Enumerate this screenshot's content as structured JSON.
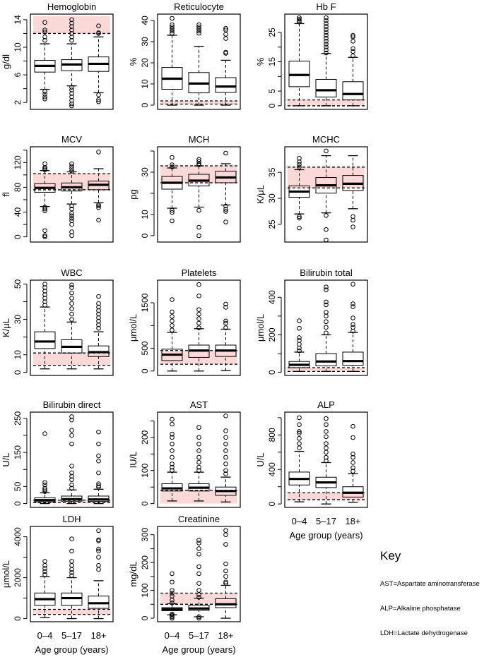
{
  "colors": {
    "band": "#fcd9d9",
    "box": "#000000"
  },
  "key": {
    "title": "Key",
    "items": [
      "AST=Aspartate aminotransferase",
      "ALP=Alkaline phosphatase",
      "LDH=Lactate dehydrogenase"
    ]
  },
  "chart_data": {
    "type": "boxplot",
    "categories": [
      "0–4",
      "5–17",
      "18+"
    ],
    "xlabel": "Age group (years)",
    "panels": [
      {
        "title": "Hemoglobin",
        "ylabel": "g/dl",
        "ylim": [
          1.3,
          14.5
        ],
        "ticks": [
          2,
          4,
          6,
          8,
          10,
          12,
          14
        ],
        "tick_labels": [
          2,
          6,
          10,
          14
        ],
        "band": [
          12,
          14.5
        ],
        "dashed": [
          12
        ],
        "boxes": [
          [
            3.9,
            6.4,
            7.3,
            8.1,
            10.5
          ],
          [
            4.4,
            6.6,
            7.5,
            8.2,
            10.5
          ],
          [
            3.4,
            6.5,
            7.6,
            8.6,
            11.5
          ]
        ],
        "outliers": [
          [
            2.5,
            2.8,
            3.2,
            3.6,
            11,
            11.5,
            12.2,
            12.5,
            13.6
          ],
          [
            1.5,
            1.8,
            2.3,
            2.8,
            3.3,
            3.8,
            4.2,
            11,
            11.5,
            12,
            12.5,
            13,
            13.5,
            14
          ],
          [
            2.1,
            2.4,
            3.1,
            12,
            12.1,
            13.1
          ]
        ]
      },
      {
        "title": "Reticulocyte",
        "ylabel": "%",
        "ylim": [
          -1,
          42
        ],
        "ticks": [
          0,
          10,
          20,
          30,
          40
        ],
        "tick_labels": [
          0,
          10,
          20,
          30,
          40
        ],
        "band": [
          0.5,
          2
        ],
        "dashed": [
          0.5,
          2
        ],
        "boxes": [
          [
            0,
            7.5,
            12.5,
            17.8,
            33
          ],
          [
            0,
            5.8,
            10.2,
            15.4,
            27.8
          ],
          [
            0,
            6,
            8.8,
            13,
            21.2
          ]
        ],
        "outliers": [
          [
            34,
            35,
            36,
            37,
            38,
            41
          ],
          [
            34,
            35,
            36,
            37,
            38
          ],
          [
            24.5,
            25,
            31.5,
            33.5,
            35.5,
            36.3
          ]
        ]
      },
      {
        "title": "Hb F",
        "ylabel": "%",
        "ylim": [
          -0.5,
          30.5
        ],
        "ticks": [
          0,
          5,
          10,
          15,
          20,
          25
        ],
        "tick_labels": [
          0,
          5,
          15,
          25
        ],
        "band": [
          0,
          2
        ],
        "dashed": [
          0,
          2
        ],
        "boxes": [
          [
            0,
            6.5,
            10.5,
            15.2,
            28
          ],
          [
            0,
            3,
            5.3,
            9,
            17.8
          ],
          [
            0,
            2,
            4,
            8.2,
            16.5
          ]
        ],
        "outliers": [
          [
            28.5,
            29,
            29.5,
            30
          ],
          [
            18,
            19,
            20,
            21,
            22,
            23,
            24,
            25,
            26,
            27,
            28,
            29,
            30
          ],
          [
            17,
            18.5,
            19.5,
            22,
            23.5,
            24
          ]
        ]
      },
      {
        "title": "MCV",
        "ylabel": "fl",
        "ylim": [
          -5,
          142
        ],
        "ticks": [
          0,
          20,
          40,
          60,
          80,
          100,
          120,
          140
        ],
        "tick_labels": [
          0,
          40,
          80,
          120
        ],
        "band": [
          76,
          102
        ],
        "dashed": [
          76,
          102
        ],
        "boxes": [
          [
            49,
            72,
            79,
            86,
            107
          ],
          [
            53,
            74,
            80,
            87,
            105
          ],
          [
            55,
            76,
            84,
            90,
            110
          ]
        ],
        "outliers": [
          [
            0,
            2,
            10,
            42,
            45,
            48,
            108,
            110,
            112,
            118
          ],
          [
            2,
            8,
            20,
            26,
            30,
            34,
            38,
            45,
            50,
            106,
            110,
            114,
            118
          ],
          [
            27,
            47,
            50,
            52,
            137
          ]
        ]
      },
      {
        "title": "MCH",
        "ylabel": "pg",
        "ylim": [
          -2,
          41
        ],
        "ticks": [
          0,
          10,
          20,
          30,
          40
        ],
        "tick_labels": [
          0,
          10,
          30
        ],
        "band": [
          25,
          33
        ],
        "dashed": [
          25,
          33
        ],
        "boxes": [
          [
            13,
            22,
            25,
            28,
            32
          ],
          [
            13.5,
            23.5,
            26,
            29,
            33
          ],
          [
            14.5,
            25,
            27.5,
            30.5,
            34
          ]
        ],
        "outliers": [
          [
            7,
            11,
            12,
            32.5,
            33.5,
            37
          ],
          [
            0,
            4,
            12,
            33.5,
            34,
            35,
            36
          ],
          [
            6.5,
            11.5,
            12.5,
            14,
            39
          ]
        ]
      },
      {
        "title": "MCHC",
        "ylabel": "K/μL",
        "ylim": [
          22,
          39.5
        ],
        "ticks": [
          25,
          30,
          35
        ],
        "tick_labels": [
          25,
          30,
          35
        ],
        "band": [
          32,
          36
        ],
        "dashed": [
          32,
          36
        ],
        "boxes": [
          [
            27,
            30.2,
            31.3,
            32.4,
            35.5
          ],
          [
            27.2,
            31,
            32.5,
            34,
            38.2
          ],
          [
            28,
            31.5,
            32.8,
            34.4,
            38.2
          ]
        ],
        "outliers": [
          [
            24.3,
            26.2,
            26.5,
            36,
            36.5,
            37,
            37.7
          ],
          [
            22,
            24,
            26.7,
            39.1
          ],
          [
            24.5,
            25.8,
            26.5
          ]
        ]
      },
      {
        "title": "WBC",
        "ylabel": "K/μL",
        "ylim": [
          -0.5,
          51
        ],
        "ticks": [
          0,
          10,
          20,
          30,
          40,
          50
        ],
        "tick_labels": [
          0,
          10,
          30,
          50
        ],
        "band": [
          4,
          11
        ],
        "dashed": [
          4,
          11
        ],
        "boxes": [
          [
            2,
            13.5,
            17.5,
            23,
            37
          ],
          [
            2,
            11,
            14.5,
            18.5,
            28.5
          ],
          [
            2,
            9,
            11.5,
            15,
            23
          ]
        ],
        "outliers": [
          [
            38,
            40,
            42,
            44,
            46,
            48,
            50
          ],
          [
            30,
            33,
            36,
            39,
            42,
            45,
            48,
            49.5
          ],
          [
            25,
            27,
            29,
            31,
            33,
            35,
            37,
            39,
            43
          ]
        ]
      },
      {
        "title": "Platelets",
        "ylabel": "μmol/L",
        "ylim": [
          -50,
          1950
        ],
        "ticks": [
          0,
          500,
          1000,
          1500
        ],
        "tick_labels": [
          0,
          500,
          1500
        ],
        "band": [
          150,
          450
        ],
        "dashed": [
          150,
          450
        ],
        "boxes": [
          [
            0,
            230,
            360,
            480,
            850
          ],
          [
            0,
            300,
            450,
            570,
            930
          ],
          [
            10,
            320,
            450,
            570,
            920
          ]
        ],
        "outliers": [
          [
            900,
            1000,
            1100,
            1200,
            1300,
            1570
          ],
          [
            950,
            1050,
            1150,
            1250,
            1350,
            1650,
            1900
          ],
          [
            950,
            1050,
            1100,
            1400,
            1470
          ]
        ]
      },
      {
        "title": "Bilirubin total",
        "ylabel": "μmol/L",
        "ylim": [
          -5,
          480
        ],
        "ticks": [
          0,
          100,
          200,
          300,
          400
        ],
        "tick_labels": [
          0,
          200,
          400
        ],
        "band": [
          5,
          25
        ],
        "dashed": [
          5,
          25
        ],
        "boxes": [
          [
            5,
            25,
            40,
            58,
            108
          ],
          [
            5,
            35,
            58,
            100,
            200
          ],
          [
            5,
            38,
            60,
            108,
            213
          ]
        ],
        "outliers": [
          [
            115,
            130,
            150,
            170,
            185,
            235,
            275
          ],
          [
            210,
            240,
            270,
            300,
            320,
            360,
            375,
            440,
            455
          ],
          [
            220,
            240,
            255,
            290,
            350,
            365,
            470
          ]
        ]
      },
      {
        "title": "Bilirubin direct",
        "ylabel": "U/L",
        "ylim": [
          -5,
          262
        ],
        "ticks": [
          0,
          50,
          100,
          150,
          200,
          250
        ],
        "tick_labels": [
          0,
          50,
          150,
          250
        ],
        "band": [
          3,
          10
        ],
        "dashed": [
          3,
          10
        ],
        "boxes": [
          [
            0,
            5,
            10,
            17,
            32
          ],
          [
            0,
            7,
            13,
            22,
            40
          ],
          [
            0,
            6,
            12,
            22,
            42
          ]
        ],
        "outliers": [
          [
            35,
            40,
            45,
            55,
            62,
            205
          ],
          [
            45,
            55,
            70,
            80,
            90,
            110,
            175,
            200,
            215,
            245,
            255
          ],
          [
            48,
            52,
            58,
            90,
            125,
            140,
            175,
            210
          ]
        ]
      },
      {
        "title": "AST",
        "ylabel": "IU/L",
        "ylim": [
          -5,
          270
        ],
        "ticks": [
          0,
          50,
          100,
          150,
          200,
          250
        ],
        "tick_labels": [
          0,
          100,
          200
        ],
        "band": [
          0,
          40
        ],
        "dashed": [
          40
        ],
        "boxes": [
          [
            8,
            38,
            46,
            60,
            95
          ],
          [
            8,
            38,
            48,
            60,
            95
          ],
          [
            5,
            25,
            38,
            50,
            80
          ]
        ],
        "outliers": [
          [
            100,
            110,
            120,
            140,
            160,
            180,
            200,
            210,
            240,
            255
          ],
          [
            100,
            110,
            125,
            140,
            160,
            180,
            200,
            230
          ],
          [
            90,
            100,
            120,
            140,
            160,
            180,
            200,
            220,
            265
          ]
        ]
      },
      {
        "title": "ALP",
        "ylabel": "U/L",
        "ylim": [
          -15,
          1040
        ],
        "ticks": [
          0,
          200,
          400,
          600,
          800,
          1000
        ],
        "tick_labels": [
          0,
          400,
          800
        ],
        "band": [
          50,
          130
        ],
        "dashed": [
          50,
          130
        ],
        "boxes": [
          [
            25,
            220,
            290,
            370,
            610
          ],
          [
            0,
            190,
            250,
            310,
            480
          ],
          [
            20,
            80,
            130,
            200,
            350
          ]
        ],
        "outliers": [
          [
            650,
            700,
            760,
            820,
            840,
            920,
            1000
          ],
          [
            500,
            540,
            600,
            650,
            700,
            780,
            840,
            920,
            990
          ],
          [
            380,
            420,
            480,
            540,
            580,
            770,
            900
          ]
        ]
      },
      {
        "title": "LDH",
        "ylabel": "μmol/L",
        "ylim": [
          -50,
          4400
        ],
        "ticks": [
          0,
          1000,
          2000,
          3000,
          4000
        ],
        "tick_labels": [
          0,
          2000,
          4000
        ],
        "band": [
          200,
          450
        ],
        "dashed": [
          200,
          450
        ],
        "boxes": [
          [
            50,
            650,
            950,
            1250,
            2050
          ],
          [
            0,
            650,
            1000,
            1250,
            2000
          ],
          [
            0,
            500,
            750,
            1100,
            1850
          ]
        ],
        "outliers": [
          [
            2150,
            2300,
            2450,
            2600,
            2800
          ],
          [
            2100,
            2250,
            2400,
            2600,
            2800,
            3300,
            3900
          ],
          [
            2400,
            2600,
            3000,
            3300,
            3400,
            3800,
            3850,
            4300
          ]
        ]
      },
      {
        "title": "Creatinine",
        "ylabel": "mg/dL",
        "ylim": [
          -5,
          322
        ],
        "ticks": [
          0,
          50,
          100,
          150,
          200,
          250,
          300
        ],
        "tick_labels": [
          0,
          100,
          200,
          300
        ],
        "band": [
          50,
          90
        ],
        "dashed": [
          50,
          90
        ],
        "boxes": [
          [
            12,
            27,
            32,
            38,
            52
          ],
          [
            5,
            28,
            35,
            47,
            72
          ],
          [
            0,
            38,
            50,
            70,
            118
          ]
        ],
        "outliers": [
          [
            0,
            5,
            10,
            15,
            55,
            65,
            80,
            90,
            100,
            130,
            160
          ],
          [
            0,
            5,
            75,
            85,
            100,
            125,
            160,
            185,
            230,
            250,
            270,
            280
          ],
          [
            125,
            130,
            150,
            170,
            195,
            265,
            300,
            315
          ]
        ]
      }
    ]
  }
}
